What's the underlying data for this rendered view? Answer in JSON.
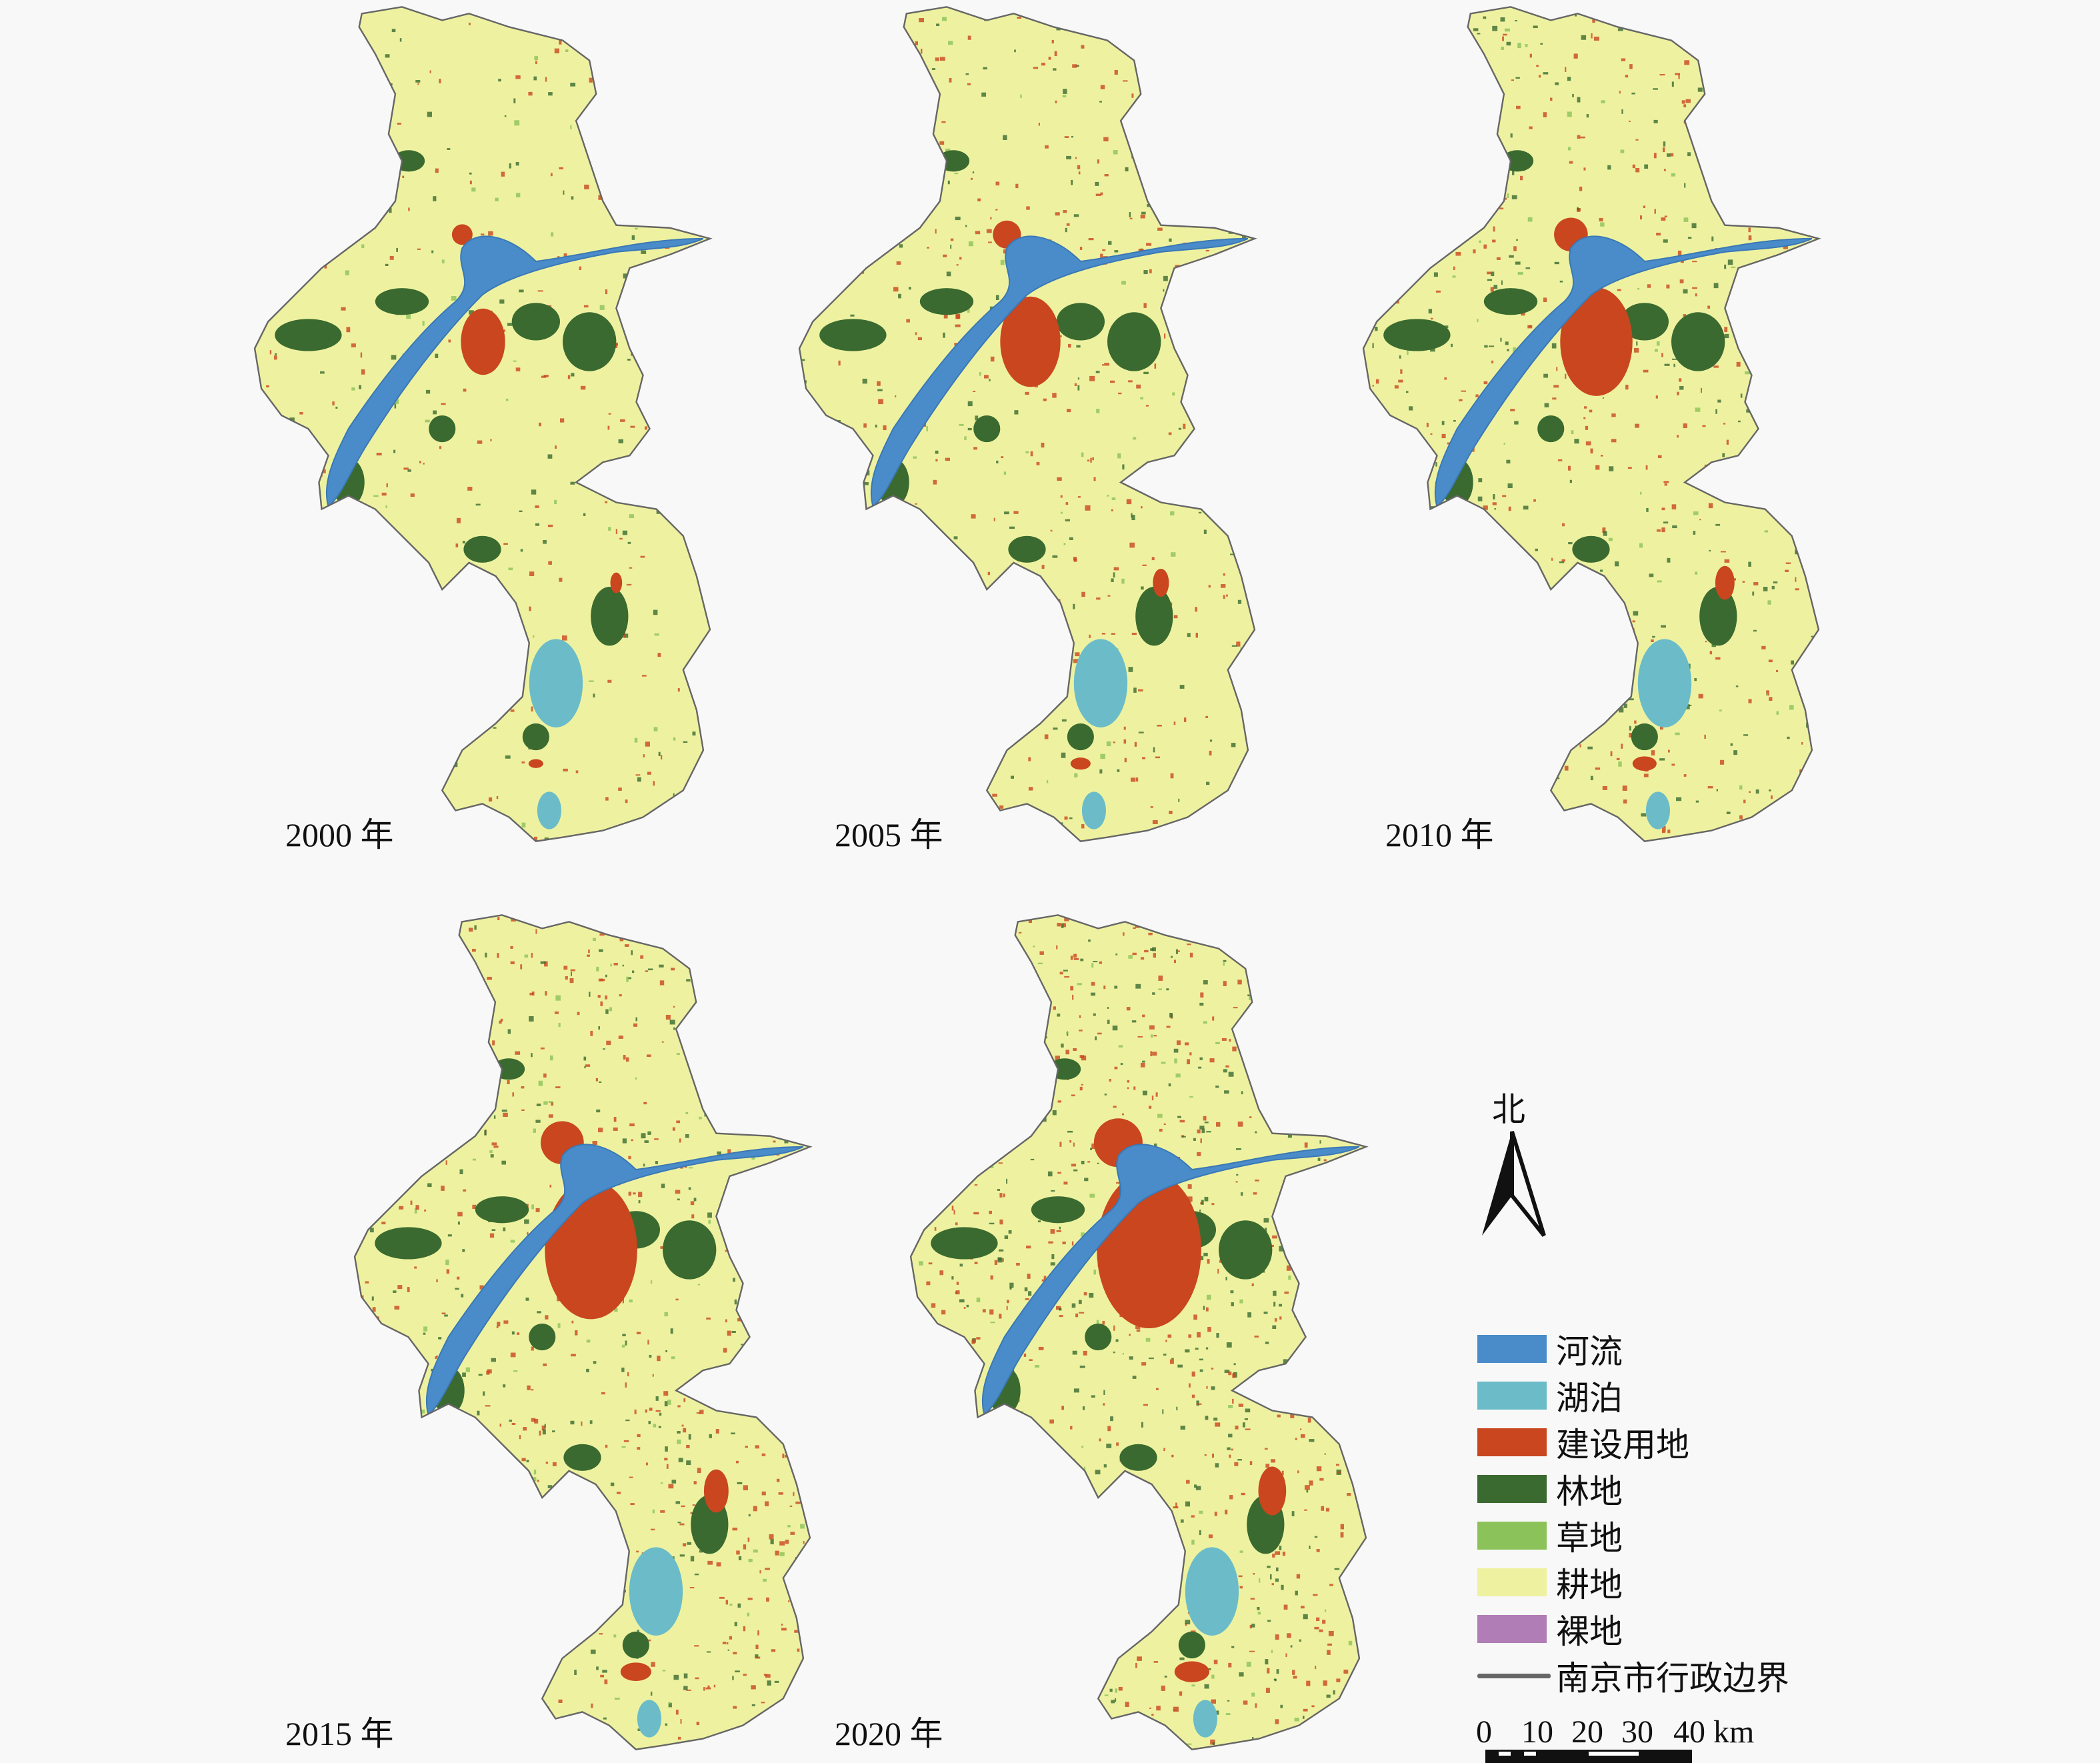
{
  "maps": [
    {
      "year_label": "2000 年",
      "urban": 0.55
    },
    {
      "year_label": "2005 年",
      "urban": 0.75
    },
    {
      "year_label": "2010 年",
      "urban": 0.9
    },
    {
      "year_label": "2015 年",
      "urban": 1.15
    },
    {
      "year_label": "2020 年",
      "urban": 1.3
    }
  ],
  "north_label": "北",
  "legend": {
    "items": [
      {
        "label": "河流",
        "color": "#4a8cc9"
      },
      {
        "label": "湖泊",
        "color": "#6bbcc8"
      },
      {
        "label": "建设用地",
        "color": "#c9461f"
      },
      {
        "label": "林地",
        "color": "#3a6a30"
      },
      {
        "label": "草地",
        "color": "#8cc25a"
      },
      {
        "label": "耕地",
        "color": "#eef2a0"
      },
      {
        "label": "裸地",
        "color": "#b07db6"
      }
    ],
    "boundary_label": "南京市行政边界",
    "boundary_color": "#666666"
  },
  "scale_bar": {
    "ticks": [
      "0",
      "10",
      "20",
      "30",
      "40 km"
    ]
  }
}
